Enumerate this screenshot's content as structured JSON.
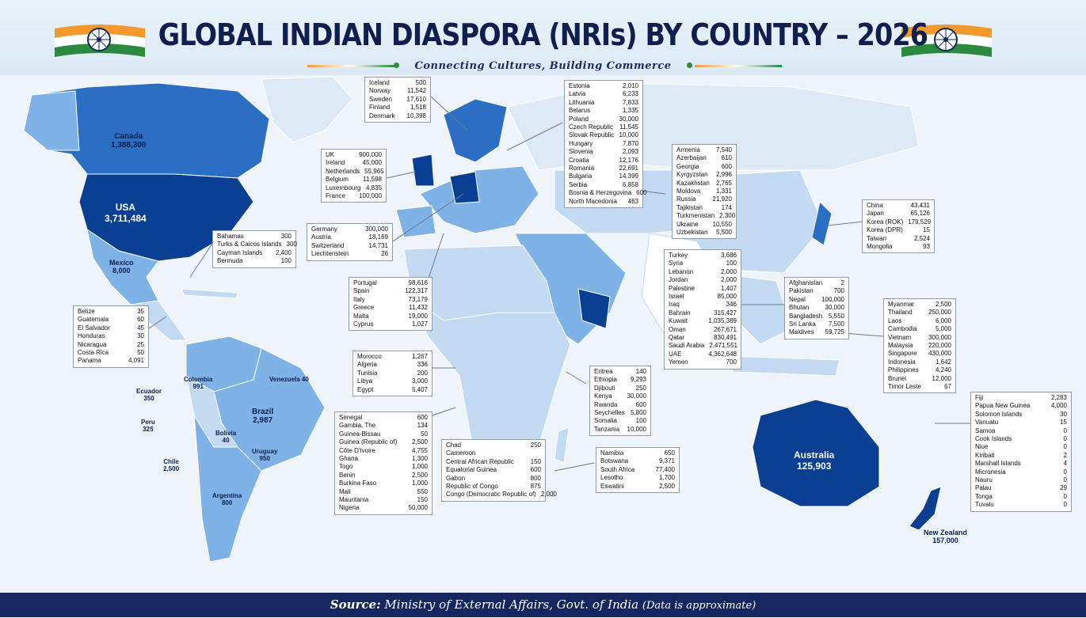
{
  "header": {
    "title": "GLOBAL INDIAN DIASPORA (NRIs) BY COUNTRY – 2026",
    "subtitle": "Connecting Cultures, Building Commerce"
  },
  "colors": {
    "dark": "#0b3f94",
    "mid": "#2a6fc4",
    "light": "#7fb2e6",
    "pale": "#c2dbf2",
    "bg": "#eef4fa",
    "footer": "#14285f"
  },
  "labels": [
    {
      "name": "Canada",
      "value": "1,388,300"
    },
    {
      "name": "USA",
      "value": "3,711,484"
    },
    {
      "name": "Mexico",
      "value": "8,000"
    },
    {
      "name": "Colombia",
      "value": "991"
    },
    {
      "name": "Venezuela",
      "value": "40"
    },
    {
      "name": "Ecuador",
      "value": "350"
    },
    {
      "name": "Peru",
      "value": "325"
    },
    {
      "name": "Brazil",
      "value": "2,987"
    },
    {
      "name": "Bolivia",
      "value": "40"
    },
    {
      "name": "Uruguay",
      "value": "950"
    },
    {
      "name": "Chile",
      "value": "2,500"
    },
    {
      "name": "Argentina",
      "value": "800"
    },
    {
      "name": "Australia",
      "value": "125,903"
    },
    {
      "name": "New Zealand",
      "value": "157,000"
    }
  ],
  "boxes": [
    {
      "rows": [
        [
          "Iceland",
          "500"
        ],
        [
          "Norway",
          "11,542"
        ],
        [
          "Sweden",
          "17,610"
        ],
        [
          "Finland",
          "1,518"
        ],
        [
          "Denmark",
          "10,398"
        ]
      ]
    },
    {
      "rows": [
        [
          "Estonia",
          "2,010"
        ],
        [
          "Latvia",
          "6,233"
        ],
        [
          "Lithuania",
          "7,833"
        ],
        [
          "Belarus",
          "1,335"
        ],
        [
          "Poland",
          "30,000"
        ],
        [
          "Czech Republic",
          "11,545"
        ],
        [
          "Slovak Republic",
          "10,000"
        ],
        [
          "Hungary",
          "7,870"
        ],
        [
          "Slovenia",
          "2,093"
        ],
        [
          "Croatia",
          "12,176"
        ],
        [
          "Romania",
          "22,691"
        ],
        [
          "Bulgaria",
          "14,399"
        ],
        [
          "Serbia",
          "6,858"
        ],
        [
          "Bosnia & Herzegovina",
          "600"
        ],
        [
          "North Macedonia",
          "463"
        ]
      ]
    },
    {
      "rows": [
        [
          "UK",
          "900,000"
        ],
        [
          "Ireland",
          "45,000"
        ],
        [
          "Netherlands",
          "55,965"
        ],
        [
          "Belgium",
          "11,598"
        ],
        [
          "Luxembourg",
          "4,835"
        ],
        [
          "France",
          "100,000"
        ]
      ]
    },
    {
      "rows": [
        [
          "Armenia",
          "7,540"
        ],
        [
          "Azerbaijan",
          "610"
        ],
        [
          "Georgia",
          "600"
        ],
        [
          "Kyrgyzstan",
          "2,996"
        ],
        [
          "Kazakhstan",
          "2,765"
        ],
        [
          "Moldova",
          "1,331"
        ],
        [
          "Russia",
          "21,920"
        ],
        [
          "Tajikistan",
          "174"
        ],
        [
          "Turkmenistan",
          "2,300"
        ],
        [
          "Ukraine",
          "10,550"
        ],
        [
          "Uzbekistan",
          "5,500"
        ]
      ]
    },
    {
      "rows": [
        [
          "China",
          "43,431"
        ],
        [
          "Japan",
          "65,126"
        ],
        [
          "Korea (ROK)",
          "179,529"
        ],
        [
          "Korea (DPR)",
          "15"
        ],
        [
          "Taiwan",
          "2,524"
        ],
        [
          "Mongolia",
          "93"
        ]
      ]
    },
    {
      "rows": [
        [
          "Bahamas",
          "300"
        ],
        [
          "Turks & Caicos Islands",
          "300"
        ],
        [
          "Cayman Islands",
          "2,400"
        ],
        [
          "Bermuda",
          "100"
        ]
      ]
    },
    {
      "rows": [
        [
          "Germany",
          "300,000"
        ],
        [
          "Austria",
          "18,169"
        ],
        [
          "Switzerland",
          "14,731"
        ],
        [
          "Liechtenstein",
          "26"
        ]
      ]
    },
    {
      "rows": [
        [
          "Turkey",
          "3,686"
        ],
        [
          "Syria",
          "100"
        ],
        [
          "Lebanon",
          "2,000"
        ],
        [
          "Jordan",
          "2,000"
        ],
        [
          "Palestine",
          "1,407"
        ],
        [
          "Israel",
          "85,000"
        ],
        [
          "Iraq",
          "346"
        ],
        [
          "Bahrain",
          "315,427"
        ],
        [
          "Kuwait",
          "1,035,389"
        ],
        [
          "Oman",
          "267,671"
        ],
        [
          "Qatar",
          "830,491"
        ],
        [
          "Saudi Arabia",
          "2,471,551"
        ],
        [
          "UAE",
          "4,362,648"
        ],
        [
          "Yemen",
          "700"
        ]
      ]
    },
    {
      "rows": [
        [
          "Afghanistan",
          "2"
        ],
        [
          "Pakistan",
          "700"
        ],
        [
          "Nepal",
          "100,000"
        ],
        [
          "Bhutan",
          "30,000"
        ],
        [
          "Bangladesh",
          "5,550"
        ],
        [
          "Sri Lanka",
          "7,500"
        ],
        [
          "Maldives",
          "59,725"
        ]
      ]
    },
    {
      "rows": [
        [
          "Portugal",
          "98,616"
        ],
        [
          "Spain",
          "122,317"
        ],
        [
          "Italy",
          "73,179"
        ],
        [
          "Greece",
          "11,432"
        ],
        [
          "Malta",
          "19,000"
        ],
        [
          "Cyprus",
          "1,027"
        ]
      ]
    },
    {
      "rows": [
        [
          "Belize",
          "35"
        ],
        [
          "Guatemala",
          "60"
        ],
        [
          "El Salvador",
          "45"
        ],
        [
          "Honduras",
          "30"
        ],
        [
          "Nicaragua",
          "25"
        ],
        [
          "Costa Rica",
          "50"
        ],
        [
          "Panama",
          "4,091"
        ]
      ]
    },
    {
      "rows": [
        [
          "Myanmar",
          "2,500"
        ],
        [
          "Thailand",
          "250,000"
        ],
        [
          "Laos",
          "6,000"
        ],
        [
          "Cambodia",
          "5,000"
        ],
        [
          "Vietnam",
          "300,000"
        ],
        [
          "Malaysia",
          "220,000"
        ],
        [
          "Singapore",
          "430,000"
        ],
        [
          "Indonesia",
          "1,642"
        ],
        [
          "Philippines",
          "4,240"
        ],
        [
          "Brunei",
          "12,000"
        ],
        [
          "Timor Leste",
          "67"
        ]
      ]
    },
    {
      "rows": [
        [
          "Morocco",
          "1,267"
        ],
        [
          "Algeria",
          "336"
        ],
        [
          "Tunisia",
          "200"
        ],
        [
          "Libya",
          "3,000"
        ],
        [
          "Egypt",
          "5,407"
        ]
      ]
    },
    {
      "rows": [
        [
          "Eritrea",
          "140"
        ],
        [
          "Ethiopia",
          "9,293"
        ],
        [
          "Djibouti",
          "250"
        ],
        [
          "Kenya",
          "30,000"
        ],
        [
          "Rwanda",
          "600"
        ],
        [
          "Seychelles",
          "5,800"
        ],
        [
          "Somalia",
          "100"
        ],
        [
          "Tanzania",
          "10,000"
        ]
      ]
    },
    {
      "rows": [
        [
          "Fiji",
          "2,283"
        ],
        [
          "Papua New Guinea",
          "4,000"
        ],
        [
          "Solomon Islands",
          "30"
        ],
        [
          "Vanuatu",
          "15"
        ],
        [
          "Samoa",
          "0"
        ],
        [
          "Cook Islands",
          "0"
        ],
        [
          "Niue",
          "0"
        ],
        [
          "Kiribati",
          "2"
        ],
        [
          "Marshall Islands",
          "4"
        ],
        [
          "Micronesia",
          "0"
        ],
        [
          "Nauru",
          "0"
        ],
        [
          "Palau",
          "29"
        ],
        [
          "Tonga",
          "0"
        ],
        [
          "Tuvalu",
          "0"
        ]
      ]
    },
    {
      "rows": [
        [
          "Senegal",
          "600"
        ],
        [
          "Gambia, The",
          "134"
        ],
        [
          "Guinea-Bissau",
          "50"
        ],
        [
          "Guinea (Republic of)",
          "2,500"
        ],
        [
          "Côte D'Ivoire",
          "4,755"
        ],
        [
          "Ghana",
          "1,300"
        ],
        [
          "Togo",
          "1,000"
        ],
        [
          "Benin",
          "2,500"
        ],
        [
          "Burkina Faso",
          "1,000"
        ],
        [
          "Mali",
          "550"
        ],
        [
          "Mauritania",
          "150"
        ],
        [
          "Nigeria",
          "50,000"
        ]
      ]
    },
    {
      "rows": [
        [
          "Chad",
          "250"
        ],
        [
          "Cameroon",
          ""
        ],
        [
          "Central African Republic",
          "150"
        ],
        [
          "Equatorial Guinea",
          "600"
        ],
        [
          "Gabon",
          "800"
        ],
        [
          "Republic of Congo",
          "875"
        ],
        [
          "Congo (Democratic Republic of)",
          "2,000"
        ]
      ]
    },
    {
      "rows": [
        [
          "Namibia",
          "650"
        ],
        [
          "Botswana",
          "9,371"
        ],
        [
          "South Africa",
          "77,400"
        ],
        [
          "Lesotho",
          "1,700"
        ],
        [
          "Eswatini",
          "2,500"
        ]
      ]
    }
  ],
  "footer": {
    "source_label": "Source:",
    "source_text": "Ministry of External Affairs, Govt. of India",
    "note": "(Data is approximate)"
  }
}
